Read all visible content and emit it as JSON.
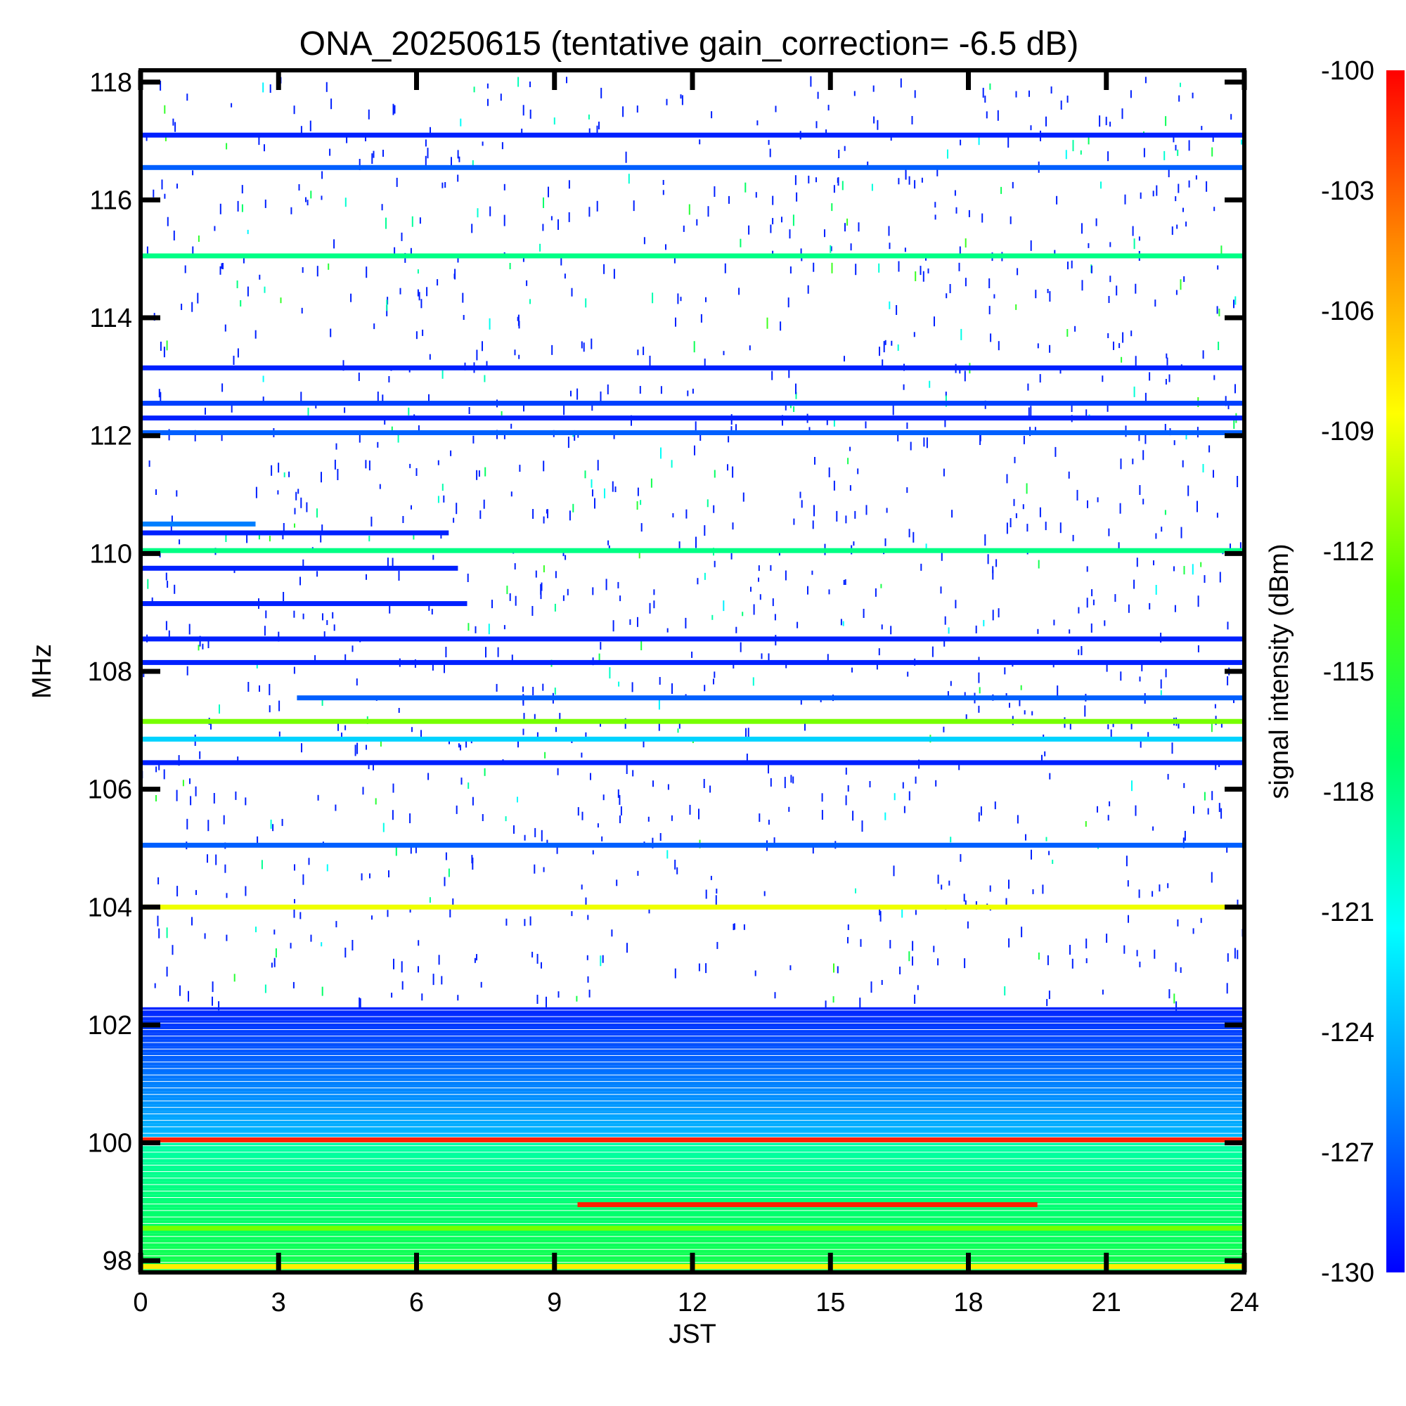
{
  "chart_data": {
    "type": "heatmap",
    "title": "ONA_20250615 (tentative gain_correction= -6.5 dB)",
    "xlabel": "JST",
    "ylabel": "MHz",
    "colorbar_label": "signal intensity (dBm)",
    "xlim": [
      0,
      24
    ],
    "ylim": [
      97.8,
      118.2
    ],
    "x_ticks": [
      "0",
      "3",
      "6",
      "9",
      "12",
      "15",
      "18",
      "21",
      "24"
    ],
    "y_ticks": [
      "98",
      "100",
      "102",
      "104",
      "106",
      "108",
      "110",
      "112",
      "114",
      "116",
      "118"
    ],
    "colorbar_range": [
      -130,
      -100
    ],
    "colorbar_ticks": [
      "-100",
      "-103",
      "-106",
      "-109",
      "-112",
      "-115",
      "-118",
      "-121",
      "-124",
      "-127",
      "-130"
    ],
    "colormap": [
      "#0000ff",
      "#0088ff",
      "#00ffff",
      "#00ff66",
      "#55ff00",
      "#ffff00",
      "#ff8800",
      "#ff0000"
    ],
    "bands": [
      {
        "freq": 117.1,
        "start": 0,
        "end": 24,
        "dbm": -129
      },
      {
        "freq": 116.55,
        "start": 0,
        "end": 24,
        "dbm": -127
      },
      {
        "freq": 115.05,
        "start": 0,
        "end": 24,
        "dbm": -118
      },
      {
        "freq": 113.15,
        "start": 0,
        "end": 24,
        "dbm": -129
      },
      {
        "freq": 112.55,
        "start": 0,
        "end": 24,
        "dbm": -128
      },
      {
        "freq": 112.3,
        "start": 0,
        "end": 24,
        "dbm": -129
      },
      {
        "freq": 112.05,
        "start": 0,
        "end": 24,
        "dbm": -127
      },
      {
        "freq": 110.5,
        "start": 0,
        "end": 2.5,
        "dbm": -126
      },
      {
        "freq": 110.35,
        "start": 0,
        "end": 6.7,
        "dbm": -129
      },
      {
        "freq": 110.05,
        "start": 0,
        "end": 24,
        "dbm": -118
      },
      {
        "freq": 109.75,
        "start": 0,
        "end": 6.9,
        "dbm": -129
      },
      {
        "freq": 109.15,
        "start": 0,
        "end": 7.1,
        "dbm": -129
      },
      {
        "freq": 108.55,
        "start": 0,
        "end": 24,
        "dbm": -129
      },
      {
        "freq": 108.15,
        "start": 0,
        "end": 24,
        "dbm": -129
      },
      {
        "freq": 107.55,
        "start": 3.4,
        "end": 24,
        "dbm": -127
      },
      {
        "freq": 107.15,
        "start": 0,
        "end": 24,
        "dbm": -112
      },
      {
        "freq": 106.85,
        "start": 0,
        "end": 24,
        "dbm": -123
      },
      {
        "freq": 106.45,
        "start": 0,
        "end": 24,
        "dbm": -129
      },
      {
        "freq": 105.05,
        "start": 0,
        "end": 24,
        "dbm": -127
      },
      {
        "freq": 104.0,
        "start": 0,
        "end": 24,
        "dbm": -109
      },
      {
        "freq": 100.05,
        "start": 0,
        "end": 24,
        "dbm": -101
      },
      {
        "freq": 98.95,
        "start": 9.5,
        "end": 19.5,
        "dbm": -101
      },
      {
        "freq": 98.55,
        "start": 0,
        "end": 24,
        "dbm": -112
      },
      {
        "freq": 97.9,
        "start": 0,
        "end": 24,
        "dbm": -108
      }
    ],
    "regions": [
      {
        "freq_low": 100.1,
        "freq_high": 102.3,
        "start": 0,
        "end": 24,
        "dbm_low_freq": -124,
        "dbm_high_freq": -129
      },
      {
        "freq_low": 97.8,
        "freq_high": 100.0,
        "start": 0,
        "end": 24,
        "dbm_low_freq": -116,
        "dbm_high_freq": -119
      }
    ]
  }
}
